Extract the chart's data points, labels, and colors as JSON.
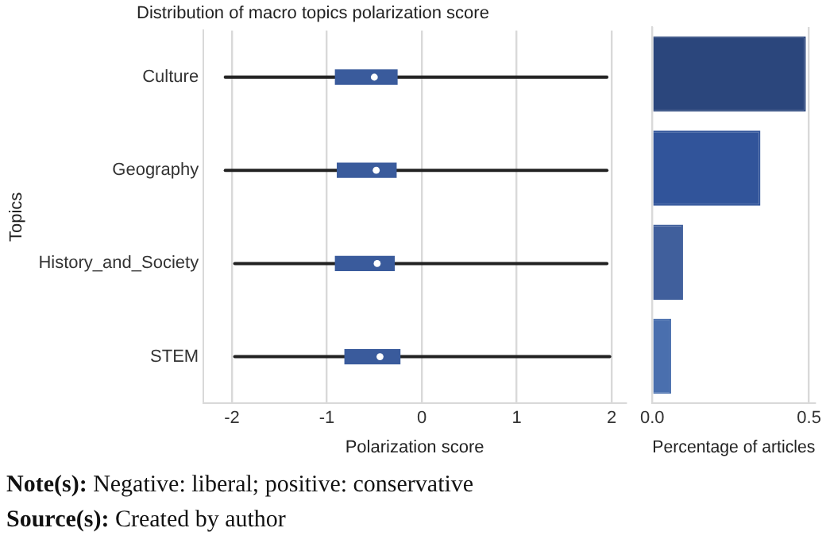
{
  "chart_data": [
    {
      "type": "box",
      "title": "Distribution of macro topics polarization score",
      "xlabel": "Polarization score",
      "ylabel": "Topics",
      "orientation": "horizontal",
      "categories": [
        "Culture",
        "Geography",
        "History_and_Society",
        "STEM"
      ],
      "color": "#3a5b9c",
      "boxes": [
        {
          "low": -2.07,
          "q1": -0.91,
          "median": -0.5,
          "q3": -0.26,
          "high": 1.95
        },
        {
          "low": -2.07,
          "q1": -0.89,
          "median": -0.48,
          "q3": -0.27,
          "high": 1.95
        },
        {
          "low": -1.97,
          "q1": -0.91,
          "median": -0.47,
          "q3": -0.29,
          "high": 1.95
        },
        {
          "low": -1.97,
          "q1": -0.81,
          "median": -0.44,
          "q3": -0.23,
          "high": 1.98
        }
      ],
      "xlim": [
        -2.3,
        2.15
      ],
      "xticks": [
        -2,
        -1,
        0,
        1,
        2
      ],
      "grid": "x",
      "annotations": [
        "Note(s): Negative: liberal; positive: conservative",
        "Source(s): Created by author"
      ]
    },
    {
      "type": "bar",
      "orientation": "horizontal",
      "xlabel": "Percentage of articles",
      "categories": [
        null,
        null,
        null,
        null
      ],
      "values": [
        0.49,
        0.345,
        0.098,
        0.06
      ],
      "colors": [
        "#2b467c",
        "#31549a",
        "#405f9c",
        "#4a6fae"
      ],
      "xlim": [
        0,
        0.52
      ],
      "xticks": [
        {
          "value": 0,
          "label": "0.0"
        },
        {
          "value": 0.5,
          "label": "0.5"
        }
      ],
      "grid": "x"
    }
  ]
}
